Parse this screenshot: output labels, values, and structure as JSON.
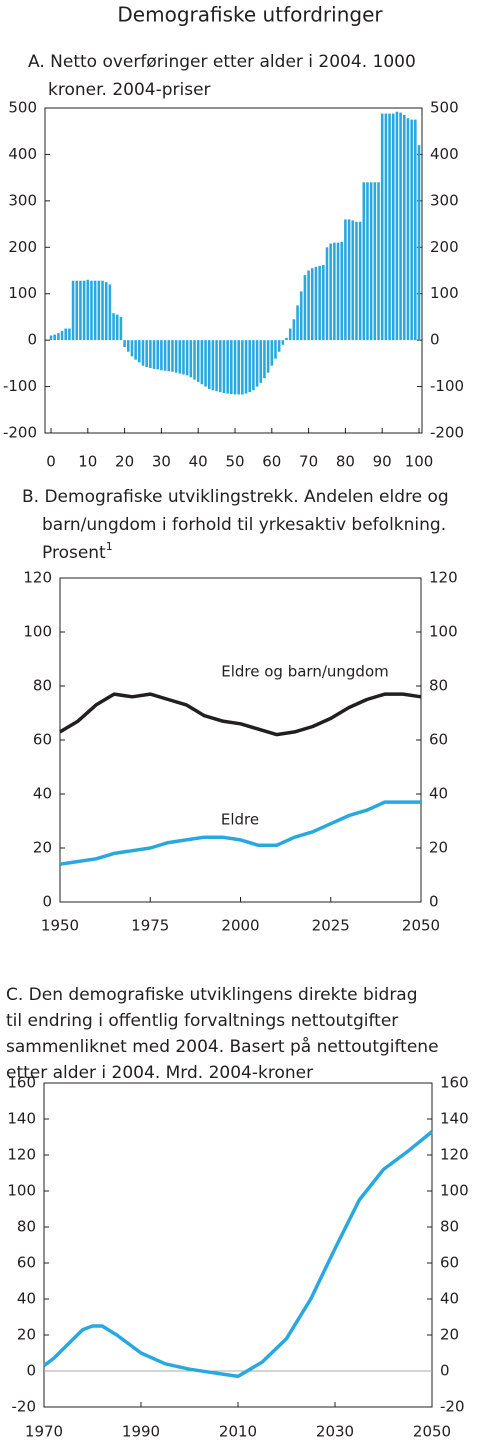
{
  "title": "Demografiske utfordringer",
  "chart_data": [
    {
      "type": "bar",
      "title": [
        "A.  Netto overføringer etter alder i 2004. 1000",
        "kroner. 2004-priser"
      ],
      "color": "#29a8e0",
      "x": [
        0,
        1,
        2,
        3,
        4,
        5,
        6,
        7,
        8,
        9,
        10,
        11,
        12,
        13,
        14,
        15,
        16,
        17,
        18,
        19,
        20,
        21,
        22,
        23,
        24,
        25,
        26,
        27,
        28,
        29,
        30,
        31,
        32,
        33,
        34,
        35,
        36,
        37,
        38,
        39,
        40,
        41,
        42,
        43,
        44,
        45,
        46,
        47,
        48,
        49,
        50,
        51,
        52,
        53,
        54,
        55,
        56,
        57,
        58,
        59,
        60,
        61,
        62,
        63,
        64,
        65,
        66,
        67,
        68,
        69,
        70,
        71,
        72,
        73,
        74,
        75,
        76,
        77,
        78,
        79,
        80,
        81,
        82,
        83,
        84,
        85,
        86,
        87,
        88,
        89,
        90,
        91,
        92,
        93,
        94,
        95,
        96,
        97,
        98,
        99,
        100
      ],
      "values": [
        10,
        12,
        15,
        20,
        25,
        25,
        128,
        128,
        128,
        128,
        130,
        128,
        128,
        128,
        128,
        125,
        120,
        58,
        55,
        50,
        -15,
        -25,
        -35,
        -42,
        -48,
        -55,
        -58,
        -60,
        -62,
        -63,
        -65,
        -66,
        -67,
        -68,
        -70,
        -72,
        -74,
        -76,
        -80,
        -85,
        -90,
        -95,
        -100,
        -105,
        -108,
        -110,
        -112,
        -114,
        -115,
        -116,
        -117,
        -117,
        -117,
        -115,
        -112,
        -108,
        -100,
        -92,
        -82,
        -70,
        -55,
        -40,
        -25,
        -10,
        5,
        25,
        45,
        75,
        105,
        140,
        150,
        155,
        158,
        160,
        162,
        200,
        208,
        210,
        210,
        212,
        260,
        260,
        258,
        255,
        255,
        340,
        340,
        340,
        340,
        340,
        488,
        488,
        488,
        488,
        492,
        490,
        485,
        478,
        475,
        475,
        420
      ],
      "xlim": [
        0,
        100
      ],
      "xticks": [
        0,
        10,
        20,
        30,
        40,
        50,
        60,
        70,
        80,
        90,
        100
      ],
      "ylim": [
        -200,
        500
      ],
      "yticks": [
        -200,
        -100,
        0,
        100,
        200,
        300,
        400,
        500
      ]
    },
    {
      "type": "line",
      "title": [
        "B.  Demografiske utviklingstrekk. Andelen eldre og",
        "barn/ungdom i forhold til yrkesaktiv befolkning.",
        "Prosent"
      ],
      "title_sup": "1",
      "x": [
        1950,
        1955,
        1960,
        1965,
        1970,
        1975,
        1980,
        1985,
        1990,
        1995,
        2000,
        2005,
        2010,
        2015,
        2020,
        2025,
        2030,
        2035,
        2040,
        2045,
        2050
      ],
      "series": [
        {
          "name": "Eldre og  barn/ungdom",
          "color": "#231f20",
          "values": [
            63,
            67,
            73,
            77,
            76,
            77,
            75,
            73,
            69,
            67,
            66,
            64,
            62,
            63,
            65,
            68,
            72,
            75,
            77,
            77,
            76
          ]
        },
        {
          "name": "Eldre",
          "color": "#29a8e0",
          "values": [
            14,
            15,
            16,
            18,
            19,
            20,
            22,
            23,
            24,
            24,
            23,
            21,
            21,
            24,
            26,
            29,
            32,
            34,
            37,
            37,
            37
          ]
        }
      ],
      "xlim": [
        1950,
        2050
      ],
      "xticks": [
        1950,
        1975,
        2000,
        2025,
        2050
      ],
      "ylim": [
        0,
        120
      ],
      "yticks": [
        0,
        20,
        40,
        60,
        80,
        100,
        120
      ]
    },
    {
      "type": "line",
      "title": [
        "C. Den demografiske utviklingens direkte bidrag",
        "til endring i offentlig forvaltnings nettoutgifter",
        "sammenliknet med 2004. Basert på nettoutgiftene",
        "etter alder i 2004. Mrd. 2004-kroner"
      ],
      "x": [
        1970,
        1972,
        1975,
        1978,
        1980,
        1982,
        1985,
        1990,
        1995,
        2000,
        2005,
        2010,
        2015,
        2020,
        2025,
        2030,
        2035,
        2040,
        2045,
        2050
      ],
      "series": [
        {
          "color": "#29a8e0",
          "values": [
            3,
            7,
            15,
            23,
            25,
            25,
            20,
            10,
            4,
            1,
            -1,
            -3,
            5,
            18,
            40,
            68,
            95,
            112,
            122,
            133
          ]
        }
      ],
      "zero_line": true,
      "xlim": [
        1970,
        2050
      ],
      "xticks": [
        1970,
        1990,
        2010,
        2030,
        2050
      ],
      "ylim": [
        -20,
        160
      ],
      "yticks": [
        -20,
        0,
        20,
        40,
        60,
        80,
        100,
        120,
        140,
        160
      ]
    }
  ]
}
